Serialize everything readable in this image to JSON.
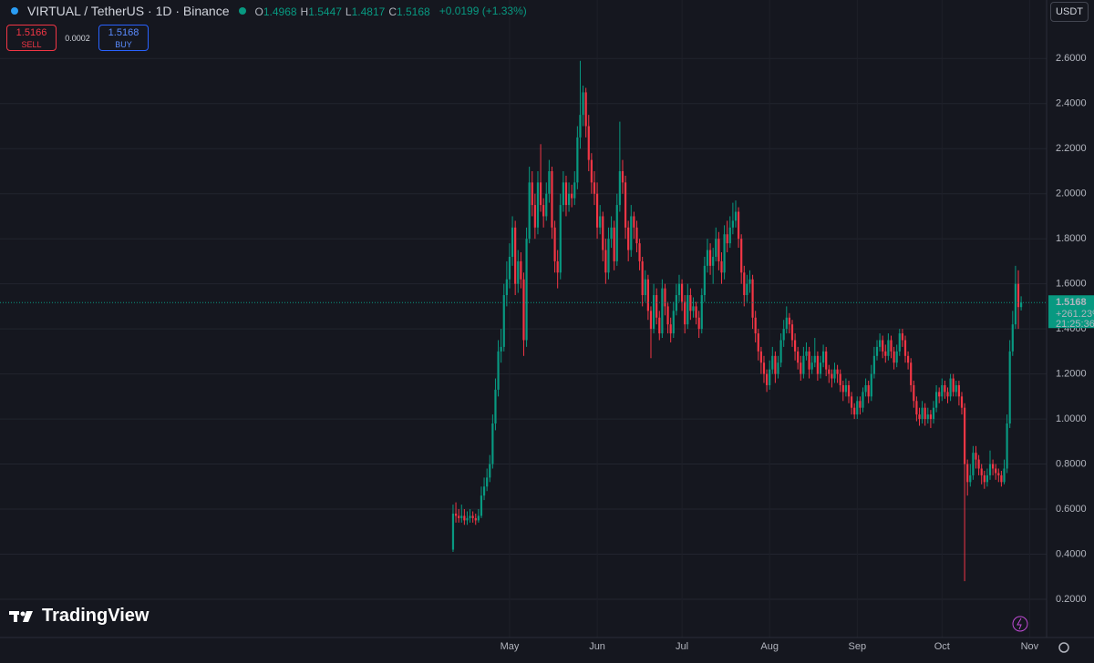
{
  "header": {
    "symbol": "VIRTUAL / TetherUS · 1D · Binance",
    "ohlc": [
      {
        "label": "O",
        "value": "1.4968"
      },
      {
        "label": "H",
        "value": "1.5447"
      },
      {
        "label": "L",
        "value": "1.4817"
      },
      {
        "label": "C",
        "value": "1.5168"
      }
    ],
    "change": "+0.0199 (+1.33%)",
    "sell": {
      "price": "1.5166",
      "label": "SELL"
    },
    "spread": "0.0002",
    "buy": {
      "price": "1.5168",
      "label": "BUY"
    },
    "currency": "USDT",
    "logo": "TradingView"
  },
  "chart_data": {
    "type": "candlestick",
    "up_color": "#089981",
    "down_color": "#f23645",
    "grid": true,
    "xlim": [
      -160.3,
      210
    ],
    "xticks": [
      {
        "value": 20,
        "label": "May"
      },
      {
        "value": 51,
        "label": "Jun"
      },
      {
        "value": 81,
        "label": "Jul"
      },
      {
        "value": 112,
        "label": "Aug"
      },
      {
        "value": 143,
        "label": "Sep"
      },
      {
        "value": 173,
        "label": "Oct"
      },
      {
        "value": 204,
        "label": "Nov"
      }
    ],
    "ylim": [
      0.03,
      2.86
    ],
    "yticks": [
      {
        "value": 0.2,
        "label": "0.2000"
      },
      {
        "value": 0.4,
        "label": "0.4000"
      },
      {
        "value": 0.6,
        "label": "0.6000"
      },
      {
        "value": 0.8,
        "label": "0.8000"
      },
      {
        "value": 1.0,
        "label": "1.0000"
      },
      {
        "value": 1.2,
        "label": "1.2000"
      },
      {
        "value": 1.4,
        "label": "1.4000"
      },
      {
        "value": 1.6,
        "label": "1.6000"
      },
      {
        "value": 1.8,
        "label": "1.8000"
      },
      {
        "value": 2.0,
        "label": "2.0000"
      },
      {
        "value": 2.2,
        "label": "2.2000"
      },
      {
        "value": 2.4,
        "label": "2.4000"
      },
      {
        "value": 2.6,
        "label": "2.6000"
      }
    ],
    "last_price": {
      "value": 1.5168,
      "label": "1.5168",
      "change": "+261.23%",
      "countdown": "21:25:36"
    },
    "candles": [
      [
        0.42,
        0.62,
        0.41,
        0.58
      ],
      [
        0.58,
        0.63,
        0.54,
        0.57
      ],
      [
        0.57,
        0.6,
        0.54,
        0.56
      ],
      [
        0.56,
        0.62,
        0.54,
        0.57
      ],
      [
        0.57,
        0.6,
        0.53,
        0.55
      ],
      [
        0.55,
        0.59,
        0.53,
        0.56
      ],
      [
        0.56,
        0.6,
        0.54,
        0.57
      ],
      [
        0.57,
        0.59,
        0.54,
        0.56
      ],
      [
        0.56,
        0.58,
        0.53,
        0.55
      ],
      [
        0.55,
        0.6,
        0.54,
        0.57
      ],
      [
        0.57,
        0.7,
        0.56,
        0.66
      ],
      [
        0.66,
        0.74,
        0.64,
        0.7
      ],
      [
        0.7,
        0.78,
        0.68,
        0.74
      ],
      [
        0.74,
        0.84,
        0.72,
        0.8
      ],
      [
        0.8,
        1.02,
        0.78,
        0.98
      ],
      [
        0.98,
        1.18,
        0.95,
        1.13
      ],
      [
        1.13,
        1.35,
        1.1,
        1.3
      ],
      [
        1.3,
        1.4,
        1.25,
        1.32
      ],
      [
        1.32,
        1.6,
        1.3,
        1.55
      ],
      [
        1.55,
        1.7,
        1.5,
        1.62
      ],
      [
        1.62,
        1.78,
        1.58,
        1.72
      ],
      [
        1.72,
        1.9,
        1.68,
        1.85
      ],
      [
        1.85,
        1.88,
        1.55,
        1.6
      ],
      [
        1.6,
        1.75,
        1.56,
        1.7
      ],
      [
        1.7,
        1.74,
        1.58,
        1.62
      ],
      [
        1.62,
        1.65,
        1.28,
        1.35
      ],
      [
        1.35,
        1.85,
        1.32,
        1.8
      ],
      [
        1.8,
        2.12,
        1.78,
        2.05
      ],
      [
        2.05,
        2.1,
        1.9,
        1.95
      ],
      [
        1.95,
        2.0,
        1.8,
        1.85
      ],
      [
        1.85,
        2.1,
        1.82,
        2.05
      ],
      [
        2.05,
        2.22,
        1.92,
        1.95
      ],
      [
        1.95,
        1.98,
        1.85,
        1.9
      ],
      [
        1.9,
        2.05,
        1.88,
        2.0
      ],
      [
        2.0,
        2.15,
        1.96,
        2.1
      ],
      [
        2.1,
        2.12,
        1.8,
        1.85
      ],
      [
        1.85,
        1.88,
        1.65,
        1.7
      ],
      [
        1.7,
        1.75,
        1.58,
        1.65
      ],
      [
        1.65,
        2.0,
        1.62,
        1.95
      ],
      [
        1.95,
        2.1,
        1.92,
        2.05
      ],
      [
        2.05,
        2.08,
        1.9,
        1.95
      ],
      [
        1.95,
        2.05,
        1.92,
        2.0
      ],
      [
        2.0,
        2.04,
        1.94,
        1.98
      ],
      [
        1.98,
        2.1,
        1.95,
        2.05
      ],
      [
        2.05,
        2.3,
        2.02,
        2.25
      ],
      [
        2.25,
        2.59,
        2.2,
        2.35
      ],
      [
        2.35,
        2.48,
        2.3,
        2.45
      ],
      [
        2.45,
        2.47,
        2.25,
        2.3
      ],
      [
        2.3,
        2.35,
        2.1,
        2.15
      ],
      [
        2.15,
        2.18,
        2.0,
        2.05
      ],
      [
        2.05,
        2.1,
        1.95,
        2.0
      ],
      [
        2.0,
        2.05,
        1.8,
        1.85
      ],
      [
        1.85,
        1.95,
        1.82,
        1.9
      ],
      [
        1.9,
        1.92,
        1.7,
        1.75
      ],
      [
        1.75,
        1.8,
        1.6,
        1.65
      ],
      [
        1.65,
        1.85,
        1.62,
        1.8
      ],
      [
        1.8,
        1.9,
        1.76,
        1.85
      ],
      [
        1.85,
        1.88,
        1.66,
        1.7
      ],
      [
        1.7,
        2.0,
        1.68,
        1.95
      ],
      [
        1.95,
        2.32,
        1.92,
        2.1
      ],
      [
        2.1,
        2.15,
        2.0,
        2.05
      ],
      [
        2.05,
        2.08,
        1.8,
        1.85
      ],
      [
        1.85,
        1.88,
        1.7,
        1.75
      ],
      [
        1.75,
        1.95,
        1.72,
        1.9
      ],
      [
        1.9,
        1.92,
        1.8,
        1.85
      ],
      [
        1.85,
        1.88,
        1.74,
        1.78
      ],
      [
        1.78,
        1.8,
        1.66,
        1.7
      ],
      [
        1.7,
        1.72,
        1.5,
        1.55
      ],
      [
        1.55,
        1.66,
        1.52,
        1.62
      ],
      [
        1.62,
        1.64,
        1.44,
        1.48
      ],
      [
        1.48,
        1.5,
        1.27,
        1.4
      ],
      [
        1.4,
        1.6,
        1.38,
        1.55
      ],
      [
        1.55,
        1.58,
        1.42,
        1.45
      ],
      [
        1.45,
        1.48,
        1.35,
        1.38
      ],
      [
        1.38,
        1.62,
        1.36,
        1.58
      ],
      [
        1.58,
        1.6,
        1.46,
        1.5
      ],
      [
        1.5,
        1.52,
        1.38,
        1.42
      ],
      [
        1.42,
        1.45,
        1.34,
        1.38
      ],
      [
        1.38,
        1.52,
        1.36,
        1.48
      ],
      [
        1.48,
        1.6,
        1.46,
        1.55
      ],
      [
        1.55,
        1.64,
        1.52,
        1.6
      ],
      [
        1.6,
        1.62,
        1.48,
        1.52
      ],
      [
        1.52,
        1.55,
        1.38,
        1.42
      ],
      [
        1.42,
        1.6,
        1.4,
        1.55
      ],
      [
        1.55,
        1.58,
        1.44,
        1.48
      ],
      [
        1.48,
        1.54,
        1.45,
        1.5
      ],
      [
        1.5,
        1.52,
        1.42,
        1.45
      ],
      [
        1.45,
        1.48,
        1.36,
        1.4
      ],
      [
        1.4,
        1.58,
        1.38,
        1.55
      ],
      [
        1.55,
        1.72,
        1.52,
        1.68
      ],
      [
        1.68,
        1.8,
        1.65,
        1.75
      ],
      [
        1.75,
        1.78,
        1.64,
        1.68
      ],
      [
        1.68,
        1.76,
        1.6,
        1.72
      ],
      [
        1.72,
        1.85,
        1.7,
        1.8
      ],
      [
        1.8,
        1.83,
        1.66,
        1.7
      ],
      [
        1.7,
        1.74,
        1.6,
        1.65
      ],
      [
        1.65,
        1.86,
        1.62,
        1.82
      ],
      [
        1.82,
        1.88,
        1.74,
        1.78
      ],
      [
        1.78,
        1.9,
        1.76,
        1.85
      ],
      [
        1.85,
        1.96,
        1.82,
        1.88
      ],
      [
        1.88,
        1.97,
        1.85,
        1.92
      ],
      [
        1.92,
        1.94,
        1.76,
        1.8
      ],
      [
        1.8,
        1.82,
        1.6,
        1.65
      ],
      [
        1.65,
        1.68,
        1.5,
        1.55
      ],
      [
        1.55,
        1.64,
        1.52,
        1.6
      ],
      [
        1.6,
        1.66,
        1.56,
        1.62
      ],
      [
        1.62,
        1.64,
        1.4,
        1.45
      ],
      [
        1.45,
        1.48,
        1.34,
        1.38
      ],
      [
        1.38,
        1.4,
        1.26,
        1.3
      ],
      [
        1.3,
        1.32,
        1.2,
        1.25
      ],
      [
        1.25,
        1.28,
        1.16,
        1.2
      ],
      [
        1.2,
        1.22,
        1.12,
        1.15
      ],
      [
        1.15,
        1.26,
        1.13,
        1.22
      ],
      [
        1.22,
        1.32,
        1.2,
        1.28
      ],
      [
        1.28,
        1.3,
        1.16,
        1.2
      ],
      [
        1.2,
        1.28,
        1.18,
        1.25
      ],
      [
        1.25,
        1.38,
        1.23,
        1.35
      ],
      [
        1.35,
        1.44,
        1.32,
        1.4
      ],
      [
        1.4,
        1.5,
        1.38,
        1.45
      ],
      [
        1.45,
        1.47,
        1.38,
        1.42
      ],
      [
        1.42,
        1.44,
        1.32,
        1.35
      ],
      [
        1.35,
        1.38,
        1.26,
        1.3
      ],
      [
        1.3,
        1.32,
        1.22,
        1.25
      ],
      [
        1.25,
        1.28,
        1.17,
        1.2
      ],
      [
        1.2,
        1.32,
        1.18,
        1.28
      ],
      [
        1.28,
        1.34,
        1.26,
        1.3
      ],
      [
        1.3,
        1.32,
        1.18,
        1.22
      ],
      [
        1.22,
        1.28,
        1.2,
        1.25
      ],
      [
        1.25,
        1.36,
        1.23,
        1.28
      ],
      [
        1.28,
        1.3,
        1.17,
        1.2
      ],
      [
        1.2,
        1.28,
        1.18,
        1.25
      ],
      [
        1.25,
        1.33,
        1.23,
        1.3
      ],
      [
        1.3,
        1.32,
        1.19,
        1.22
      ],
      [
        1.22,
        1.24,
        1.16,
        1.2
      ],
      [
        1.2,
        1.22,
        1.14,
        1.18
      ],
      [
        1.18,
        1.25,
        1.16,
        1.22
      ],
      [
        1.22,
        1.24,
        1.16,
        1.2
      ],
      [
        1.2,
        1.22,
        1.12,
        1.15
      ],
      [
        1.15,
        1.17,
        1.08,
        1.12
      ],
      [
        1.12,
        1.18,
        1.1,
        1.15
      ],
      [
        1.15,
        1.17,
        1.07,
        1.1
      ],
      [
        1.1,
        1.12,
        1.02,
        1.05
      ],
      [
        1.05,
        1.07,
        1.0,
        1.02
      ],
      [
        1.02,
        1.1,
        1.0,
        1.08
      ],
      [
        1.08,
        1.1,
        1.02,
        1.05
      ],
      [
        1.05,
        1.14,
        1.03,
        1.12
      ],
      [
        1.12,
        1.18,
        1.1,
        1.15
      ],
      [
        1.15,
        1.17,
        1.07,
        1.1
      ],
      [
        1.1,
        1.24,
        1.08,
        1.2
      ],
      [
        1.2,
        1.32,
        1.18,
        1.28
      ],
      [
        1.28,
        1.35,
        1.26,
        1.32
      ],
      [
        1.32,
        1.38,
        1.3,
        1.35
      ],
      [
        1.35,
        1.37,
        1.27,
        1.3
      ],
      [
        1.3,
        1.33,
        1.25,
        1.28
      ],
      [
        1.28,
        1.38,
        1.26,
        1.35
      ],
      [
        1.35,
        1.37,
        1.27,
        1.3
      ],
      [
        1.3,
        1.32,
        1.22,
        1.25
      ],
      [
        1.25,
        1.33,
        1.23,
        1.3
      ],
      [
        1.3,
        1.4,
        1.28,
        1.38
      ],
      [
        1.38,
        1.4,
        1.32,
        1.35
      ],
      [
        1.35,
        1.37,
        1.25,
        1.28
      ],
      [
        1.28,
        1.3,
        1.22,
        1.25
      ],
      [
        1.25,
        1.27,
        1.12,
        1.15
      ],
      [
        1.15,
        1.17,
        1.05,
        1.08
      ],
      [
        1.08,
        1.1,
        0.99,
        1.02
      ],
      [
        1.02,
        1.05,
        0.97,
        1.0
      ],
      [
        1.0,
        1.08,
        0.98,
        1.05
      ],
      [
        1.05,
        1.07,
        0.97,
        1.0
      ],
      [
        1.0,
        1.05,
        0.98,
        1.02
      ],
      [
        1.02,
        1.04,
        0.96,
        1.0
      ],
      [
        1.0,
        1.08,
        0.98,
        1.05
      ],
      [
        1.05,
        1.15,
        1.03,
        1.12
      ],
      [
        1.12,
        1.14,
        1.07,
        1.1
      ],
      [
        1.1,
        1.18,
        1.08,
        1.15
      ],
      [
        1.15,
        1.17,
        1.09,
        1.12
      ],
      [
        1.12,
        1.14,
        1.07,
        1.1
      ],
      [
        1.1,
        1.2,
        1.08,
        1.18
      ],
      [
        1.18,
        1.2,
        1.1,
        1.12
      ],
      [
        1.12,
        1.17,
        1.1,
        1.15
      ],
      [
        1.15,
        1.17,
        1.06,
        1.1
      ],
      [
        1.1,
        1.12,
        1.02,
        1.05
      ],
      [
        1.05,
        1.07,
        0.28,
        0.8
      ],
      [
        0.8,
        0.82,
        0.66,
        0.72
      ],
      [
        0.72,
        0.8,
        0.7,
        0.75
      ],
      [
        0.75,
        0.88,
        0.73,
        0.85
      ],
      [
        0.85,
        0.88,
        0.78,
        0.82
      ],
      [
        0.82,
        0.84,
        0.75,
        0.78
      ],
      [
        0.78,
        0.8,
        0.71,
        0.75
      ],
      [
        0.75,
        0.77,
        0.69,
        0.72
      ],
      [
        0.72,
        0.78,
        0.7,
        0.75
      ],
      [
        0.75,
        0.86,
        0.73,
        0.8
      ],
      [
        0.8,
        0.82,
        0.75,
        0.78
      ],
      [
        0.78,
        0.8,
        0.73,
        0.76
      ],
      [
        0.76,
        0.78,
        0.72,
        0.75
      ],
      [
        0.75,
        0.77,
        0.7,
        0.72
      ],
      [
        0.72,
        0.82,
        0.71,
        0.78
      ],
      [
        0.78,
        1.02,
        0.76,
        0.98
      ],
      [
        0.98,
        1.35,
        0.96,
        1.3
      ],
      [
        1.3,
        1.48,
        1.28,
        1.42
      ],
      [
        1.42,
        1.68,
        1.4,
        1.6
      ],
      [
        1.6,
        1.66,
        1.4,
        1.4968
      ],
      [
        1.4968,
        1.5447,
        1.4817,
        1.5168
      ]
    ]
  }
}
